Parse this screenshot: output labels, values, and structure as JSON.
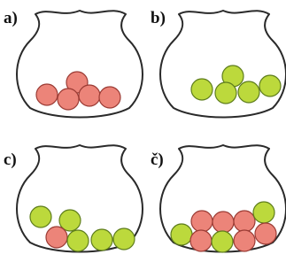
{
  "bags": [
    {
      "label": "a)"
    },
    {
      "label": "b)"
    },
    {
      "label": "c)"
    },
    {
      "label": "č)"
    }
  ]
}
